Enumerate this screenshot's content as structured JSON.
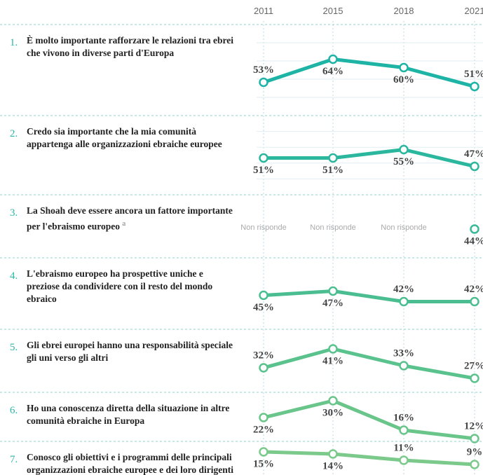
{
  "chart_data": {
    "type": "line",
    "categories": [
      "2011",
      "2015",
      "2018",
      "2021"
    ],
    "series": [
      {
        "number": "1.",
        "name": "È molto importante rafforzare le relazioni tra ebrei che vivono in diverse parti d'Europa",
        "color": "#1db4a6",
        "values": [
          53,
          64,
          60,
          51
        ],
        "value_labels": [
          "53%",
          "64%",
          "60%",
          "51%"
        ]
      },
      {
        "number": "2.",
        "name": "Credo sia importante che la mia comunità appartenga alle organizzazioni ebraiche europee",
        "color": "#2bb79e",
        "values": [
          51,
          51,
          55,
          47
        ],
        "value_labels": [
          "51%",
          "51%",
          "55%",
          "47%"
        ]
      },
      {
        "number": "3.",
        "name": "La Shoah deve essere ancora un fattore importante per l'ebraismo europeoa",
        "note": "a",
        "color": "#38ba97",
        "values": [
          null,
          null,
          null,
          44
        ],
        "value_labels": [
          "Non risponde",
          "Non risponde",
          "Non risponde",
          "44%"
        ]
      },
      {
        "number": "4.",
        "name": "L'ebraismo europeo ha prospettive uniche e preziose da condividere con il resto del mondo ebraico",
        "color": "#4bbe91",
        "values": [
          45,
          47,
          42,
          42
        ],
        "value_labels": [
          "45%",
          "47%",
          "42%",
          "42%"
        ]
      },
      {
        "number": "5.",
        "name": "Gli ebrei europei hanno una responsabilità speciale gli uni verso gli altri",
        "color": "#5ac28d",
        "values": [
          32,
          41,
          33,
          27
        ],
        "value_labels": [
          "32%",
          "41%",
          "33%",
          "27%"
        ]
      },
      {
        "number": "6.",
        "name": "Ho una conoscenza diretta della situazione in altre comunità ebraiche in Europa",
        "color": "#69c58a",
        "values": [
          22,
          30,
          16,
          12
        ],
        "value_labels": [
          "22%",
          "30%",
          "16%",
          "12%"
        ]
      },
      {
        "number": "7.",
        "name": "Conosco gli obiettivi e i programmi delle principali organizzazioni ebraiche europee e dei loro dirigenti",
        "color": "#7bca8c",
        "values": [
          15,
          14,
          11,
          9
        ],
        "value_labels": [
          "15%",
          "14%",
          "11%",
          "9%"
        ]
      }
    ]
  }
}
